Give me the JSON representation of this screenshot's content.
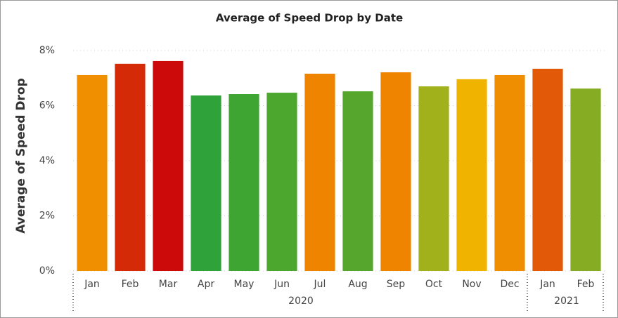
{
  "chart_data": {
    "type": "bar",
    "title": "Average of Speed Drop by Date",
    "y_label": "Average of Speed Drop",
    "groups": [
      {
        "label": "2020",
        "categories": [
          "Jan",
          "Feb",
          "Mar",
          "Apr",
          "May",
          "Jun",
          "Jul",
          "Aug",
          "Sep",
          "Oct",
          "Nov",
          "Dec"
        ]
      },
      {
        "label": "2021",
        "categories": [
          "Jan",
          "Feb"
        ]
      }
    ],
    "values": [
      7.11,
      7.52,
      7.62,
      6.37,
      6.42,
      6.47,
      7.16,
      6.52,
      7.21,
      6.7,
      6.96,
      7.11,
      7.34,
      6.62
    ],
    "colors": [
      "#f09000",
      "#d52a08",
      "#cc0a0a",
      "#2fa23a",
      "#3ea533",
      "#4ca72f",
      "#ee8400",
      "#56a62d",
      "#ee8400",
      "#a0b11c",
      "#f0b400",
      "#ee8e00",
      "#e25a08",
      "#86ac23"
    ],
    "ylim": [
      0,
      8
    ],
    "yticks": [
      {
        "value": 0,
        "label": "0%"
      },
      {
        "value": 2,
        "label": "2%"
      },
      {
        "value": 4,
        "label": "4%"
      },
      {
        "value": 6,
        "label": "6%"
      },
      {
        "value": 8,
        "label": "8%"
      }
    ],
    "grid": true
  }
}
